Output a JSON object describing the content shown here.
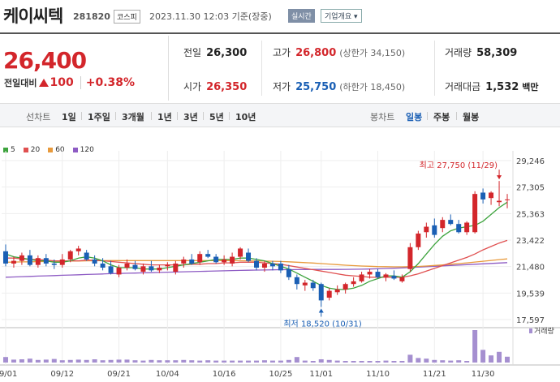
{
  "stock": {
    "name": "케이씨텍",
    "code": "281820",
    "market": "코스피",
    "datetime": "2023.11.30 12:03 기준(장중)",
    "realtime_label": "실시간",
    "company_info_label": "기업개요"
  },
  "price": {
    "current": "26,400",
    "change_label": "전일대비",
    "change_value": "100",
    "change_pct": "+0.38%"
  },
  "stats": {
    "prev_close_label": "전일",
    "prev_close": "26,300",
    "high_label": "고가",
    "high": "26,800",
    "upper_limit": "(상한가 34,150)",
    "volume_label": "거래량",
    "volume": "58,309",
    "open_label": "시가",
    "open": "26,350",
    "low_label": "저가",
    "low": "25,750",
    "lower_limit": "(하한가 18,450)",
    "amount_label": "거래대금",
    "amount": "1,532",
    "amount_unit": "백만"
  },
  "tabs": {
    "line_chart_label": "선차트",
    "periods": [
      "1일",
      "1주일",
      "3개월",
      "1년",
      "3년",
      "5년",
      "10년"
    ],
    "candle_label": "봉차트",
    "candle_types": [
      "일봉",
      "주봉",
      "월봉"
    ],
    "active_candle": "일봉"
  },
  "colors": {
    "up": "#d3262b",
    "down": "#1a5fb4",
    "ma5": "#3da33d",
    "ma20": "#e05050",
    "ma60": "#e89a3c",
    "ma120": "#8e5cc4",
    "volume": "#a58fd0"
  },
  "chart_data": {
    "type": "candlestick",
    "legend": [
      {
        "name": "5",
        "color": "#3da33d"
      },
      {
        "name": "20",
        "color": "#e05050"
      },
      {
        "name": "60",
        "color": "#e89a3c"
      },
      {
        "name": "120",
        "color": "#8e5cc4"
      }
    ],
    "y_ticks": [
      29246,
      27305,
      25363,
      23422,
      21480,
      19539,
      17597
    ],
    "y_tick_labels": [
      "29,246",
      "27,305",
      "25,363",
      "23,422",
      "21,480",
      "19,539",
      "17,597"
    ],
    "ylim": [
      17597,
      29246
    ],
    "x_tick_labels": [
      "09/01",
      "09/12",
      "09/21",
      "10/04",
      "10/16",
      "10/25",
      "11/01",
      "11/10",
      "11/21",
      "11/30"
    ],
    "x_tick_index": [
      0,
      7,
      14,
      20,
      27,
      34,
      39,
      46,
      53,
      59
    ],
    "high_annotation": "최고 27,750 (11/29)",
    "low_annotation": "최저 18,520 (10/31)",
    "volume_label": "거래량",
    "candles": [
      {
        "o": 22600,
        "h": 23100,
        "l": 21500,
        "c": 21700
      },
      {
        "o": 21700,
        "h": 22200,
        "l": 21400,
        "c": 21900
      },
      {
        "o": 21900,
        "h": 22500,
        "l": 21600,
        "c": 22300
      },
      {
        "o": 22300,
        "h": 22700,
        "l": 21500,
        "c": 21600
      },
      {
        "o": 21600,
        "h": 22300,
        "l": 21400,
        "c": 22100
      },
      {
        "o": 22100,
        "h": 22400,
        "l": 21500,
        "c": 21700
      },
      {
        "o": 21700,
        "h": 22000,
        "l": 21300,
        "c": 21600
      },
      {
        "o": 21600,
        "h": 22400,
        "l": 21400,
        "c": 22000
      },
      {
        "o": 22000,
        "h": 22700,
        "l": 21800,
        "c": 22600
      },
      {
        "o": 22600,
        "h": 23000,
        "l": 22300,
        "c": 22800
      },
      {
        "o": 22500,
        "h": 22700,
        "l": 21900,
        "c": 22000
      },
      {
        "o": 22000,
        "h": 22300,
        "l": 21500,
        "c": 21700
      },
      {
        "o": 21700,
        "h": 22100,
        "l": 21200,
        "c": 21400
      },
      {
        "o": 21500,
        "h": 21900,
        "l": 20900,
        "c": 21000
      },
      {
        "o": 20900,
        "h": 21600,
        "l": 20700,
        "c": 21400
      },
      {
        "o": 21400,
        "h": 22000,
        "l": 21200,
        "c": 21700
      },
      {
        "o": 21600,
        "h": 21900,
        "l": 21200,
        "c": 21300
      },
      {
        "o": 21100,
        "h": 21700,
        "l": 20900,
        "c": 21500
      },
      {
        "o": 21500,
        "h": 21900,
        "l": 21100,
        "c": 21200
      },
      {
        "o": 21200,
        "h": 21600,
        "l": 21000,
        "c": 21400
      },
      {
        "o": 21500,
        "h": 21800,
        "l": 21200,
        "c": 21600
      },
      {
        "o": 21100,
        "h": 21900,
        "l": 20900,
        "c": 21700
      },
      {
        "o": 21700,
        "h": 22200,
        "l": 21400,
        "c": 22000
      },
      {
        "o": 22000,
        "h": 22400,
        "l": 21600,
        "c": 21700
      },
      {
        "o": 21800,
        "h": 22600,
        "l": 21600,
        "c": 22400
      },
      {
        "o": 22400,
        "h": 22700,
        "l": 22100,
        "c": 22200
      },
      {
        "o": 22200,
        "h": 22400,
        "l": 21700,
        "c": 21800
      },
      {
        "o": 21800,
        "h": 22300,
        "l": 21600,
        "c": 22000
      },
      {
        "o": 21700,
        "h": 22500,
        "l": 21500,
        "c": 22200
      },
      {
        "o": 22200,
        "h": 22900,
        "l": 22000,
        "c": 22800
      },
      {
        "o": 22500,
        "h": 22800,
        "l": 21800,
        "c": 21900
      },
      {
        "o": 21900,
        "h": 22100,
        "l": 21200,
        "c": 21400
      },
      {
        "o": 21400,
        "h": 21900,
        "l": 21100,
        "c": 21700
      },
      {
        "o": 21700,
        "h": 21900,
        "l": 21200,
        "c": 21500
      },
      {
        "o": 21700,
        "h": 21900,
        "l": 21000,
        "c": 21200
      },
      {
        "o": 21300,
        "h": 21600,
        "l": 20500,
        "c": 20700
      },
      {
        "o": 20700,
        "h": 20900,
        "l": 19800,
        "c": 20200
      },
      {
        "o": 20100,
        "h": 20500,
        "l": 19700,
        "c": 20300
      },
      {
        "o": 20300,
        "h": 20500,
        "l": 19700,
        "c": 19900
      },
      {
        "o": 20200,
        "h": 20300,
        "l": 18520,
        "c": 19000
      },
      {
        "o": 19200,
        "h": 19900,
        "l": 19000,
        "c": 19700
      },
      {
        "o": 19600,
        "h": 20100,
        "l": 19400,
        "c": 19800
      },
      {
        "o": 19800,
        "h": 20300,
        "l": 19500,
        "c": 20200
      },
      {
        "o": 20200,
        "h": 20700,
        "l": 20000,
        "c": 20400
      },
      {
        "o": 20400,
        "h": 21100,
        "l": 20300,
        "c": 20900
      },
      {
        "o": 20900,
        "h": 21300,
        "l": 20600,
        "c": 21100
      },
      {
        "o": 21100,
        "h": 21300,
        "l": 20600,
        "c": 20700
      },
      {
        "o": 20700,
        "h": 21000,
        "l": 20400,
        "c": 20900
      },
      {
        "o": 20800,
        "h": 21200,
        "l": 20500,
        "c": 20600
      },
      {
        "o": 20400,
        "h": 20900,
        "l": 20300,
        "c": 20700
      },
      {
        "o": 21300,
        "h": 23200,
        "l": 21100,
        "c": 22900
      },
      {
        "o": 22900,
        "h": 24100,
        "l": 22700,
        "c": 23900
      },
      {
        "o": 24000,
        "h": 24700,
        "l": 23600,
        "c": 24400
      },
      {
        "o": 24500,
        "h": 25000,
        "l": 23600,
        "c": 23800
      },
      {
        "o": 24300,
        "h": 25100,
        "l": 24000,
        "c": 24900
      },
      {
        "o": 24900,
        "h": 25300,
        "l": 24500,
        "c": 24600
      },
      {
        "o": 24600,
        "h": 24900,
        "l": 23900,
        "c": 24000
      },
      {
        "o": 24000,
        "h": 24800,
        "l": 23800,
        "c": 24700
      },
      {
        "o": 24000,
        "h": 27000,
        "l": 23900,
        "c": 26800
      },
      {
        "o": 26900,
        "h": 27200,
        "l": 26100,
        "c": 26400
      },
      {
        "o": 26500,
        "h": 27000,
        "l": 26000,
        "c": 26900
      },
      {
        "o": 26200,
        "h": 27750,
        "l": 25900,
        "c": 26300
      },
      {
        "o": 26350,
        "h": 26800,
        "l": 25750,
        "c": 26400
      }
    ],
    "ma5": [
      22400,
      22200,
      22100,
      22000,
      21900,
      21900,
      21800,
      21800,
      21900,
      22100,
      22200,
      22100,
      21900,
      21600,
      21400,
      21400,
      21400,
      21300,
      21300,
      21300,
      21400,
      21500,
      21600,
      21700,
      21800,
      21900,
      22000,
      22000,
      22000,
      22100,
      22100,
      22000,
      21900,
      21700,
      21500,
      21300,
      21000,
      20700,
      20400,
      20100,
      19900,
      19800,
      19800,
      19900,
      20100,
      20400,
      20600,
      20800,
      20800,
      20700,
      21100,
      21700,
      22400,
      23100,
      23700,
      24100,
      24300,
      24400,
      24500,
      24800,
      25300,
      25800,
      26200
    ],
    "ma20": [
      22100,
      22100,
      22050,
      22000,
      22000,
      21950,
      21900,
      21900,
      21900,
      21900,
      21950,
      21950,
      21900,
      21850,
      21800,
      21750,
      21700,
      21650,
      21600,
      21600,
      21600,
      21600,
      21600,
      21650,
      21650,
      21700,
      21700,
      21750,
      21750,
      21800,
      21800,
      21800,
      21750,
      21700,
      21650,
      21550,
      21450,
      21350,
      21250,
      21150,
      21050,
      20950,
      20850,
      20800,
      20750,
      20700,
      20700,
      20700,
      20700,
      20700,
      20800,
      20950,
      21150,
      21350,
      21550,
      21750,
      21950,
      22150,
      22400,
      22700,
      22950,
      23200,
      23400
    ],
    "ma60": [
      21800,
      21810,
      21820,
      21830,
      21840,
      21850,
      21860,
      21870,
      21880,
      21890,
      21900,
      21905,
      21910,
      21915,
      21920,
      21920,
      21920,
      21920,
      21920,
      21920,
      21920,
      21920,
      21920,
      21920,
      21920,
      21920,
      21920,
      21915,
      21910,
      21905,
      21900,
      21890,
      21880,
      21870,
      21850,
      21830,
      21800,
      21770,
      21740,
      21700,
      21660,
      21620,
      21580,
      21550,
      21520,
      21500,
      21480,
      21470,
      21460,
      21460,
      21470,
      21490,
      21520,
      21560,
      21600,
      21650,
      21700,
      21750,
      21810,
      21870,
      21930,
      21990,
      22040
    ],
    "ma120": [
      20700,
      20720,
      20740,
      20760,
      20780,
      20800,
      20820,
      20840,
      20860,
      20880,
      20900,
      20920,
      20940,
      20960,
      20975,
      20990,
      21005,
      21020,
      21035,
      21050,
      21065,
      21080,
      21095,
      21110,
      21125,
      21140,
      21155,
      21170,
      21185,
      21200,
      21210,
      21220,
      21230,
      21240,
      21250,
      21255,
      21260,
      21265,
      21270,
      21270,
      21270,
      21270,
      21275,
      21280,
      21290,
      21300,
      21320,
      21340,
      21360,
      21380,
      21410,
      21440,
      21470,
      21500,
      21530,
      21560,
      21590,
      21620,
      21650,
      21680,
      21710,
      21740,
      21770
    ],
    "volume": [
      0.17,
      0.09,
      0.1,
      0.12,
      0.08,
      0.09,
      0.11,
      0.07,
      0.08,
      0.09,
      0.08,
      0.1,
      0.07,
      0.08,
      0.09,
      0.09,
      0.07,
      0.06,
      0.08,
      0.07,
      0.07,
      0.07,
      0.08,
      0.07,
      0.06,
      0.07,
      0.06,
      0.06,
      0.06,
      0.06,
      0.06,
      0.06,
      0.07,
      0.06,
      0.06,
      0.08,
      0.17,
      0.06,
      0.05,
      0.1,
      0.08,
      0.06,
      0.05,
      0.05,
      0.05,
      0.05,
      0.05,
      0.06,
      0.05,
      0.05,
      0.24,
      0.14,
      0.12,
      0.08,
      0.07,
      0.06,
      0.07,
      0.05,
      1.0,
      0.39,
      0.22,
      0.33,
      0.18
    ]
  }
}
